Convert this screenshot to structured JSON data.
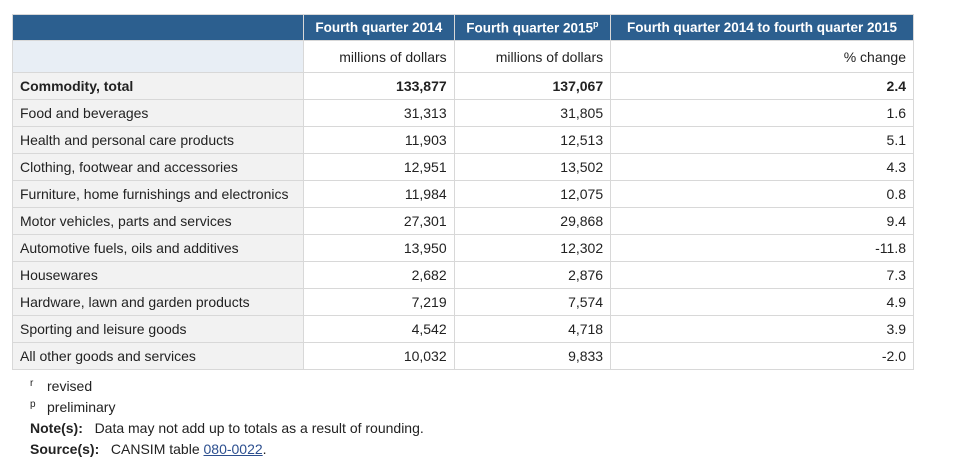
{
  "table": {
    "header": [
      "Fourth quarter 2014",
      "Fourth quarter 2015",
      "Fourth quarter 2014 to fourth quarter 2015"
    ],
    "header_sup": "p",
    "units": [
      "millions of dollars",
      "millions of dollars",
      "% change"
    ],
    "rows": [
      [
        "Commodity, total",
        "133,877",
        "137,067",
        "2.4"
      ],
      [
        "Food and beverages",
        "31,313",
        "31,805",
        "1.6"
      ],
      [
        "Health and personal care products",
        "11,903",
        "12,513",
        "5.1"
      ],
      [
        "Clothing, footwear and accessories",
        "12,951",
        "13,502",
        "4.3"
      ],
      [
        "Furniture, home furnishings and electronics",
        "11,984",
        "12,075",
        "0.8"
      ],
      [
        "Motor vehicles, parts and services",
        "27,301",
        "29,868",
        "9.4"
      ],
      [
        "Automotive fuels, oils and additives",
        "13,950",
        "12,302",
        "-11.8"
      ],
      [
        "Housewares",
        "2,682",
        "2,876",
        "7.3"
      ],
      [
        "Hardware, lawn and garden products",
        "7,219",
        "7,574",
        "4.9"
      ],
      [
        "Sporting and leisure goods",
        "4,542",
        "4,718",
        "3.9"
      ],
      [
        "All other goods and services",
        "10,032",
        "9,833",
        "-2.0"
      ]
    ]
  },
  "footnotes": {
    "symbols": [
      {
        "mark": "r",
        "text": "revised"
      },
      {
        "mark": "p",
        "text": "preliminary"
      }
    ],
    "note_label": "Note(s):",
    "note": "Data may not add up to totals as a result of rounding.",
    "source_label": "Source(s):",
    "source_text": "CANSIM table",
    "source_link": "080-0022",
    "source_end": "."
  }
}
